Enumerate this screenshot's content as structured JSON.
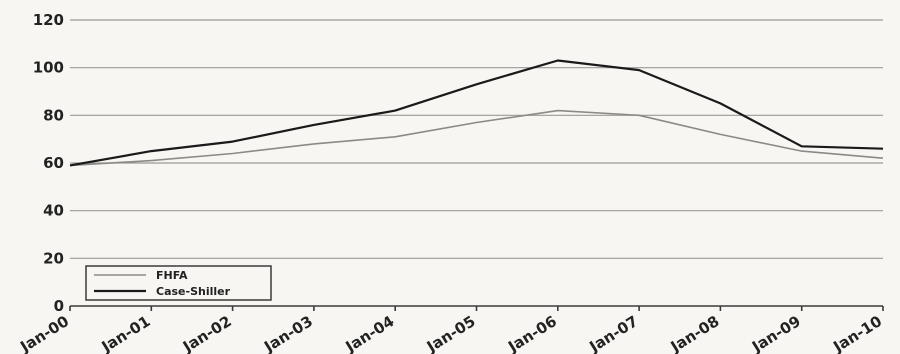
{
  "chart_data": {
    "type": "line",
    "categories": [
      "Jan-00",
      "Jan-01",
      "Jan-02",
      "Jan-03",
      "Jan-04",
      "Jan-05",
      "Jan-06",
      "Jan-07",
      "Jan-08",
      "Jan-09",
      "Jan-10"
    ],
    "series": [
      {
        "name": "FHFA",
        "values": [
          59,
          61,
          64,
          68,
          71,
          77,
          82,
          80,
          72,
          65,
          62
        ],
        "color": "#8a8a86"
      },
      {
        "name": "Case-Shiller",
        "values": [
          59,
          65,
          69,
          76,
          82,
          93,
          103,
          99,
          85,
          67,
          66
        ],
        "color": "#1a1a1a"
      }
    ],
    "yticks": [
      0,
      20,
      40,
      60,
      80,
      100,
      120
    ],
    "ylim": [
      0,
      120
    ],
    "grid": true,
    "legend_position": "bottom-left",
    "title": "",
    "xlabel": "",
    "ylabel": ""
  }
}
